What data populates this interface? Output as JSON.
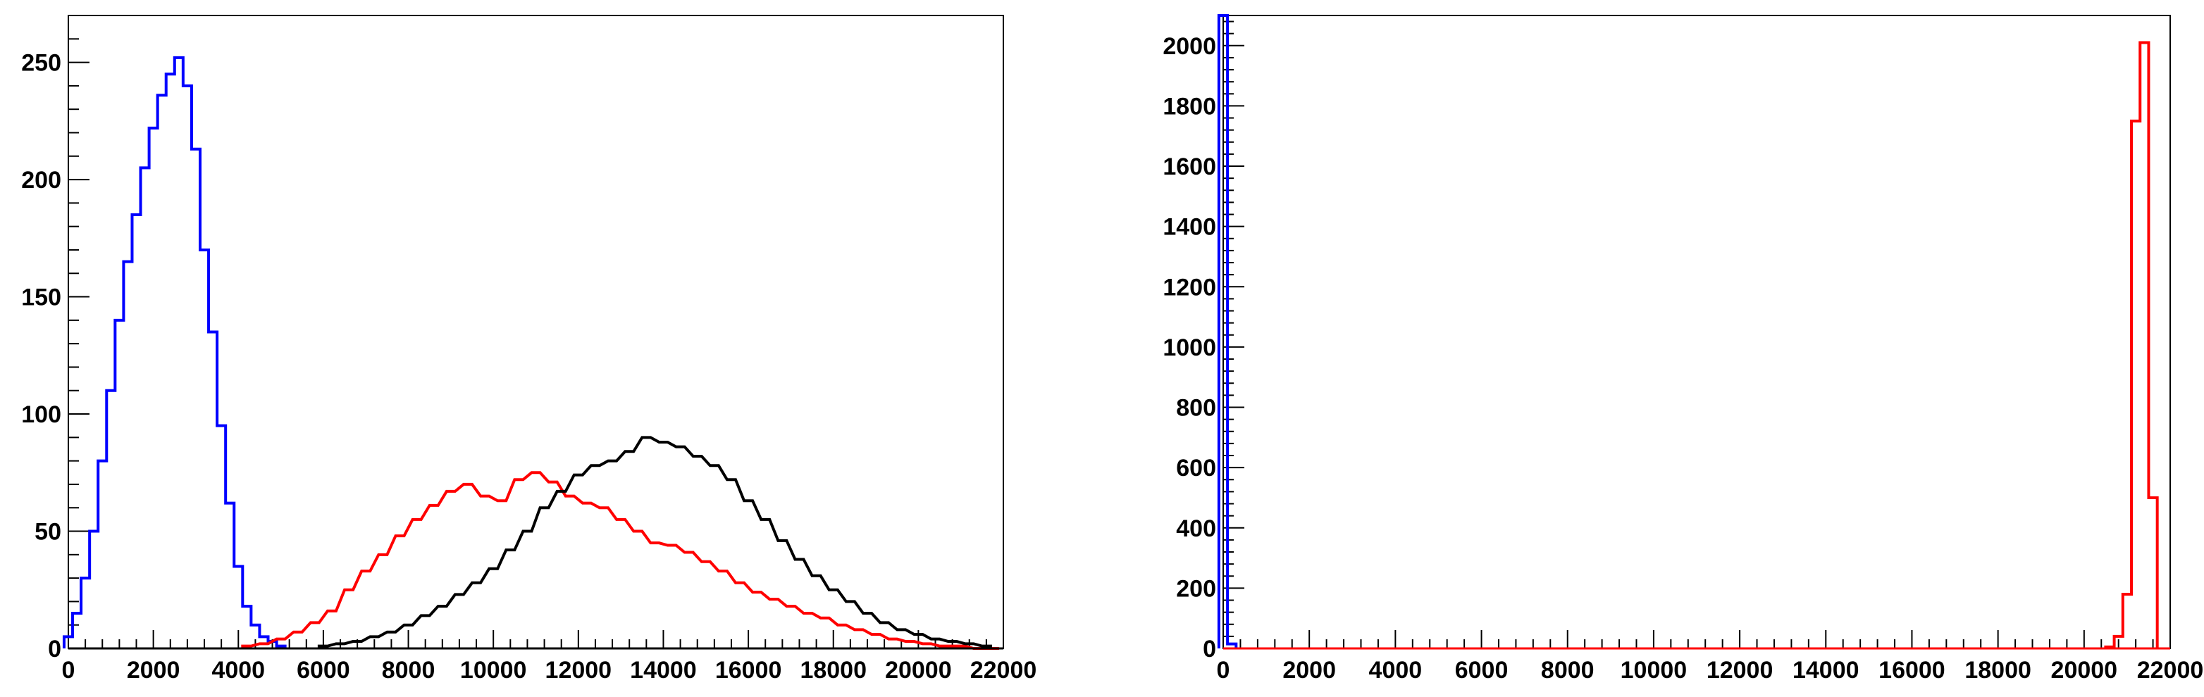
{
  "chart_data": [
    {
      "type": "histogram",
      "xlim": [
        0,
        22000
      ],
      "ylim": [
        0,
        270
      ],
      "x_ticks": [
        0,
        2000,
        4000,
        6000,
        8000,
        10000,
        12000,
        14000,
        16000,
        18000,
        20000,
        22000
      ],
      "x_tick_labels": [
        "0",
        "2000",
        "4000",
        "6000",
        "8000",
        "10000",
        "12000",
        "14000",
        "16000",
        "18000",
        "20000",
        "22000"
      ],
      "y_ticks": [
        0,
        50,
        100,
        150,
        200,
        250
      ],
      "y_tick_labels": [
        "0",
        "50",
        "100",
        "150",
        "200",
        "250"
      ],
      "bin_width": 200,
      "grid": false,
      "series": [
        {
          "color": "#0000ff",
          "x": [
            0,
            200,
            400,
            600,
            800,
            1000,
            1200,
            1400,
            1600,
            1800,
            2000,
            2200,
            2400,
            2600,
            2800,
            3000,
            3200,
            3400,
            3600,
            3800,
            4000,
            4200,
            4400,
            4600,
            4800,
            5000
          ],
          "values": [
            5,
            15,
            30,
            50,
            80,
            110,
            140,
            165,
            185,
            205,
            222,
            236,
            245,
            252,
            240,
            213,
            170,
            135,
            95,
            62,
            35,
            18,
            10,
            5,
            3,
            1
          ]
        },
        {
          "color": "#ff0000",
          "x": [
            4200,
            4600,
            5000,
            5400,
            5800,
            6200,
            6600,
            7000,
            7400,
            7800,
            8200,
            8600,
            9000,
            9400,
            9800,
            10200,
            10600,
            11000,
            11400,
            11800,
            12200,
            12600,
            13000,
            13400,
            13800,
            14200,
            14600,
            15000,
            15400,
            15800,
            16200,
            16600,
            17000,
            17400,
            17800,
            18200,
            18600,
            19000,
            19400,
            19800,
            20200,
            20600,
            21000,
            21400,
            21800
          ],
          "values": [
            1,
            2,
            4,
            7,
            11,
            16,
            25,
            33,
            40,
            48,
            55,
            61,
            67,
            70,
            65,
            63,
            72,
            75,
            71,
            65,
            62,
            60,
            55,
            50,
            45,
            44,
            41,
            37,
            33,
            28,
            24,
            21,
            18,
            15,
            13,
            10,
            8,
            6,
            4,
            3,
            2,
            1,
            1,
            0,
            0
          ]
        },
        {
          "color": "#000000",
          "x": [
            6000,
            6400,
            6800,
            7200,
            7600,
            8000,
            8400,
            8800,
            9200,
            9600,
            10000,
            10400,
            10800,
            11200,
            11600,
            12000,
            12400,
            12800,
            13200,
            13600,
            14000,
            14400,
            14800,
            15200,
            15600,
            16000,
            16400,
            16800,
            17200,
            17600,
            18000,
            18400,
            18800,
            19200,
            19600,
            20000,
            20400,
            20800,
            21200,
            21600
          ],
          "values": [
            1,
            2,
            3,
            5,
            7,
            10,
            14,
            18,
            23,
            28,
            34,
            42,
            50,
            60,
            67,
            74,
            78,
            80,
            84,
            90,
            88,
            86,
            82,
            78,
            72,
            63,
            55,
            46,
            38,
            31,
            25,
            20,
            15,
            11,
            8,
            6,
            4,
            3,
            2,
            1
          ]
        }
      ]
    },
    {
      "type": "histogram",
      "xlim": [
        0,
        22000
      ],
      "ylim": [
        0,
        2100
      ],
      "x_ticks": [
        0,
        2000,
        4000,
        6000,
        8000,
        10000,
        12000,
        14000,
        16000,
        18000,
        20000,
        22000
      ],
      "x_tick_labels": [
        "0",
        "2000",
        "4000",
        "6000",
        "8000",
        "10000",
        "12000",
        "14000",
        "16000",
        "18000",
        "20000",
        "22000"
      ],
      "y_ticks": [
        0,
        200,
        400,
        600,
        800,
        1000,
        1200,
        1400,
        1600,
        1800,
        2000
      ],
      "y_tick_labels": [
        "0",
        "200",
        "400",
        "600",
        "800",
        "1000",
        "1200",
        "1400",
        "1600",
        "1800",
        "2000"
      ],
      "bin_width": 200,
      "grid": false,
      "series": [
        {
          "color": "#0000ff",
          "x": [
            0,
            200
          ],
          "values": [
            2100,
            15
          ]
        },
        {
          "color": "#ff0000",
          "x": [
            20600,
            20800,
            21000,
            21200,
            21400,
            21600
          ],
          "values": [
            5,
            40,
            180,
            1750,
            2010,
            500
          ]
        }
      ]
    }
  ]
}
